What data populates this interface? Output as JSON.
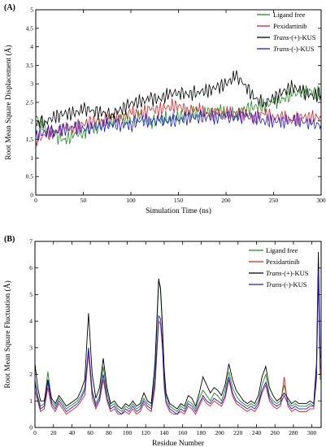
{
  "chart_data": [
    {
      "type": "line",
      "panel_label": "(A)",
      "xlabel": "Simulation Time (ns)",
      "ylabel": "Root Mean Square Displacement (Å)",
      "xlim": [
        0,
        300
      ],
      "ylim": [
        0,
        5
      ],
      "xticks": [
        "0",
        "50",
        "100",
        "150",
        "200",
        "250",
        "300"
      ],
      "yticks": [
        "0",
        "0.5",
        "1",
        "1.5",
        "2",
        "2.5",
        "3",
        "3.5",
        "4",
        "4.5",
        "5"
      ],
      "legend_position": "top-right",
      "x": [
        0,
        10,
        20,
        30,
        40,
        50,
        60,
        70,
        80,
        90,
        100,
        110,
        120,
        130,
        140,
        150,
        160,
        170,
        180,
        190,
        200,
        210,
        220,
        230,
        240,
        250,
        260,
        270,
        280,
        290,
        300
      ],
      "series": [
        {
          "name_prefix": "",
          "name_italic": "",
          "name_suffix": "Ligand free",
          "color": "#1f8c1f",
          "values": [
            2.1,
            1.8,
            1.6,
            1.5,
            1.6,
            1.7,
            1.8,
            1.9,
            2.0,
            2.1,
            2.0,
            2.1,
            2.0,
            2.0,
            2.1,
            2.1,
            2.2,
            2.2,
            2.2,
            2.3,
            2.2,
            2.2,
            2.3,
            2.4,
            2.4,
            2.5,
            2.6,
            2.7,
            2.8,
            2.8,
            2.7
          ]
        },
        {
          "name_prefix": "",
          "name_italic": "",
          "name_suffix": "Pexidartinib",
          "color": "#e02020",
          "values": [
            1.5,
            1.6,
            1.7,
            1.8,
            1.8,
            1.9,
            2.0,
            2.0,
            2.1,
            2.1,
            2.2,
            2.2,
            2.3,
            2.3,
            2.4,
            2.4,
            2.3,
            2.3,
            2.2,
            2.2,
            2.2,
            2.2,
            2.2,
            2.1,
            2.2,
            2.1,
            2.1,
            2.0,
            2.1,
            2.1,
            2.1
          ]
        },
        {
          "name_prefix": "",
          "name_italic": "Trans",
          "name_suffix": "-(+)-KUS",
          "color": "#000000",
          "values": [
            1.9,
            2.0,
            2.1,
            2.2,
            2.2,
            2.3,
            2.3,
            2.2,
            2.2,
            2.3,
            2.5,
            2.5,
            2.6,
            2.6,
            2.7,
            2.8,
            2.7,
            2.8,
            2.8,
            2.9,
            3.0,
            3.2,
            3.0,
            2.6,
            2.5,
            2.6,
            2.8,
            2.9,
            2.8,
            2.7,
            2.7
          ]
        },
        {
          "name_prefix": "",
          "name_italic": "Trans",
          "name_suffix": "-(-)-KUS",
          "color": "#1a1ae6",
          "values": [
            1.6,
            1.7,
            1.7,
            1.8,
            1.8,
            1.8,
            1.8,
            1.9,
            1.9,
            1.9,
            1.9,
            2.0,
            2.0,
            2.0,
            2.0,
            2.0,
            2.1,
            2.1,
            2.1,
            2.1,
            2.1,
            2.1,
            2.1,
            2.1,
            2.0,
            2.0,
            2.0,
            2.0,
            2.0,
            1.9,
            1.9
          ]
        }
      ]
    },
    {
      "type": "line",
      "panel_label": "(B)",
      "xlabel": "Residue Number",
      "ylabel": "Root Mean Square Fluctuation (Å)",
      "xlim": [
        0,
        310
      ],
      "ylim": [
        0,
        7
      ],
      "xticks": [
        "0",
        "20",
        "40",
        "60",
        "80",
        "100",
        "120",
        "140",
        "160",
        "180",
        "200",
        "220",
        "240",
        "260",
        "280",
        "300"
      ],
      "yticks": [
        "0",
        "1",
        "2",
        "3",
        "4",
        "5",
        "6",
        "7"
      ],
      "legend_position": "top-right",
      "x": [
        0,
        3,
        6,
        10,
        14,
        18,
        22,
        26,
        30,
        34,
        38,
        42,
        46,
        50,
        54,
        58,
        62,
        66,
        70,
        74,
        78,
        82,
        86,
        90,
        94,
        98,
        102,
        106,
        110,
        114,
        118,
        122,
        126,
        130,
        134,
        136,
        138,
        140,
        142,
        146,
        150,
        154,
        158,
        162,
        166,
        170,
        174,
        178,
        182,
        186,
        190,
        194,
        198,
        202,
        206,
        210,
        214,
        218,
        222,
        226,
        230,
        234,
        238,
        242,
        246,
        250,
        254,
        258,
        262,
        266,
        270,
        274,
        278,
        282,
        286,
        290,
        294,
        298,
        302,
        305,
        307,
        309
      ],
      "series": [
        {
          "name_prefix": "",
          "name_italic": "",
          "name_suffix": "Ligand free",
          "color": "#1f8c1f",
          "values": [
            1.8,
            1.2,
            0.8,
            0.9,
            2.1,
            1.0,
            0.8,
            1.1,
            0.9,
            0.7,
            0.8,
            0.9,
            1.0,
            1.2,
            1.5,
            3.0,
            1.4,
            0.9,
            1.2,
            2.3,
            1.3,
            0.8,
            0.9,
            0.7,
            0.6,
            0.8,
            0.7,
            0.9,
            0.7,
            0.8,
            1.1,
            0.9,
            0.8,
            2.0,
            5.5,
            5.3,
            4.0,
            2.0,
            1.2,
            0.8,
            0.7,
            0.6,
            0.8,
            0.7,
            1.0,
            0.9,
            0.7,
            1.1,
            1.4,
            1.2,
            1.0,
            1.3,
            1.2,
            1.0,
            1.4,
            2.1,
            1.5,
            1.2,
            1.0,
            0.9,
            0.8,
            0.9,
            0.8,
            1.0,
            1.6,
            2.0,
            1.2,
            1.0,
            0.9,
            1.0,
            1.6,
            1.0,
            0.8,
            0.9,
            0.8,
            0.8,
            0.8,
            0.9,
            0.8,
            2.0,
            6.2,
            1.8
          ]
        },
        {
          "name_prefix": "",
          "name_italic": "",
          "name_suffix": "Pexidartinib",
          "color": "#e02020",
          "values": [
            1.4,
            1.0,
            0.6,
            0.7,
            1.5,
            0.8,
            0.6,
            0.9,
            0.7,
            0.5,
            0.6,
            0.7,
            0.8,
            1.0,
            1.2,
            2.8,
            1.1,
            0.7,
            1.0,
            1.8,
            1.0,
            0.6,
            0.7,
            0.5,
            0.5,
            0.6,
            0.5,
            0.7,
            0.5,
            0.6,
            0.9,
            0.7,
            0.6,
            1.5,
            4.0,
            3.9,
            3.0,
            1.5,
            0.9,
            0.6,
            0.5,
            0.5,
            0.6,
            0.5,
            0.8,
            0.7,
            0.5,
            0.8,
            1.1,
            0.9,
            0.8,
            1.0,
            0.9,
            0.8,
            1.1,
            1.8,
            1.2,
            0.9,
            0.8,
            0.7,
            0.6,
            0.7,
            0.6,
            0.8,
            1.3,
            1.6,
            1.0,
            0.8,
            0.7,
            0.8,
            1.9,
            0.8,
            0.6,
            0.7,
            0.6,
            0.6,
            0.6,
            0.7,
            0.7,
            1.8,
            6.0,
            2.0
          ]
        },
        {
          "name_prefix": "",
          "name_italic": "Trans",
          "name_suffix": "-(+)-KUS",
          "color": "#000000",
          "values": [
            2.4,
            1.5,
            1.0,
            1.0,
            1.8,
            1.1,
            0.9,
            1.2,
            1.0,
            0.8,
            0.9,
            1.0,
            1.1,
            1.4,
            1.8,
            4.3,
            2.0,
            1.1,
            1.5,
            2.6,
            1.5,
            0.9,
            1.0,
            0.8,
            0.7,
            0.9,
            0.8,
            1.0,
            0.8,
            0.9,
            1.3,
            1.0,
            0.9,
            2.4,
            5.6,
            5.2,
            3.8,
            2.2,
            1.3,
            0.9,
            0.8,
            0.7,
            0.9,
            0.8,
            1.2,
            1.1,
            0.8,
            1.3,
            1.9,
            1.6,
            1.3,
            1.5,
            1.4,
            1.2,
            1.6,
            2.4,
            1.8,
            1.4,
            1.2,
            1.0,
            0.9,
            1.0,
            0.9,
            1.2,
            1.9,
            2.3,
            1.5,
            1.2,
            1.0,
            1.1,
            1.3,
            1.1,
            0.9,
            1.0,
            0.9,
            0.9,
            0.9,
            1.0,
            0.9,
            2.4,
            6.6,
            2.6
          ]
        },
        {
          "name_prefix": "",
          "name_italic": "Trans",
          "name_suffix": "-(-)-KUS",
          "color": "#1a1ae6",
          "values": [
            1.7,
            1.1,
            0.7,
            0.8,
            1.7,
            0.9,
            0.7,
            1.0,
            0.8,
            0.6,
            0.7,
            0.8,
            0.9,
            1.1,
            1.4,
            3.0,
            1.3,
            0.8,
            1.1,
            2.0,
            1.1,
            0.7,
            0.8,
            0.6,
            0.5,
            0.7,
            0.6,
            0.8,
            0.6,
            0.7,
            1.0,
            0.8,
            0.7,
            1.7,
            4.2,
            4.1,
            3.2,
            1.7,
            1.0,
            0.7,
            0.6,
            0.5,
            0.7,
            0.6,
            0.9,
            0.8,
            0.6,
            0.9,
            1.2,
            1.0,
            0.9,
            1.1,
            1.0,
            0.9,
            1.2,
            1.9,
            1.3,
            1.0,
            0.9,
            0.8,
            0.7,
            0.8,
            0.7,
            0.9,
            1.4,
            1.7,
            1.1,
            0.9,
            0.8,
            0.9,
            1.2,
            0.9,
            0.7,
            0.8,
            0.7,
            0.7,
            0.7,
            0.8,
            0.8,
            1.9,
            5.9,
            2.2
          ]
        }
      ]
    }
  ]
}
